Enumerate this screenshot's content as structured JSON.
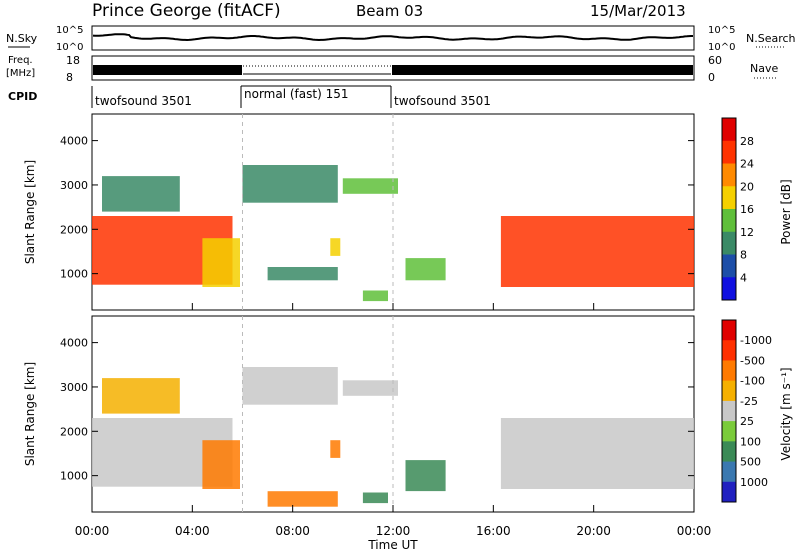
{
  "header": {
    "station": "Prince George (fitACF)",
    "beam": "Beam 03",
    "date": "15/Mar/2013"
  },
  "sky_panel": {
    "left_label": "N.Sky",
    "right_label": "N.Search",
    "y_ticks": [
      "10^5",
      "10^0"
    ],
    "right_ticks": [
      "10^5",
      "10^0"
    ]
  },
  "freq_panel": {
    "left_label_line1": "Freq.",
    "left_label_line2": "[MHz]",
    "left_ticks": [
      "18",
      "8"
    ],
    "right_label": "Nave",
    "right_ticks": [
      "60",
      "0"
    ]
  },
  "cpid": {
    "label": "CPID",
    "segments": [
      {
        "name": "twofsound 3501",
        "start_ut": 0,
        "end_ut": 6
      },
      {
        "name": "normal (fast) 151",
        "start_ut": 6,
        "end_ut": 12
      },
      {
        "name": "twofsound 3501",
        "start_ut": 12,
        "end_ut": 24
      }
    ]
  },
  "power_panel": {
    "ylabel": "Slant Range [km]",
    "y_ticks": [
      "1000",
      "2000",
      "3000",
      "4000"
    ],
    "colorbar_label": "Power [dB]",
    "colorbar_ticks": [
      "4",
      "8",
      "12",
      "16",
      "20",
      "24",
      "28"
    ],
    "colors": [
      "#1010e0",
      "#1c4ea8",
      "#3a8a66",
      "#5fbf3a",
      "#f5d000",
      "#ff8a00",
      "#ff3300",
      "#e00000"
    ]
  },
  "velocity_panel": {
    "ylabel": "Slant Range [km]",
    "y_ticks": [
      "1000",
      "2000",
      "3000",
      "4000"
    ],
    "colorbar_label": "Velocity [m s⁻¹]",
    "colorbar_ticks": [
      "1000",
      "500",
      "100",
      "25",
      "-25",
      "-100",
      "-500",
      "-1000"
    ],
    "colors": [
      "#2020c0",
      "#3a78b0",
      "#3a8a56",
      "#7acb3a",
      "#c8c8c8",
      "#f5b000",
      "#ff7a00",
      "#ff3000",
      "#e00000"
    ]
  },
  "xaxis": {
    "label": "Time UT",
    "ticks": [
      "00:00",
      "04:00",
      "08:00",
      "12:00",
      "16:00",
      "20:00",
      "00:00"
    ]
  },
  "chart_data": {
    "type": "heatmap",
    "title": "Prince George (fitACF)  Beam 03  15/Mar/2013",
    "xlabel": "Time UT",
    "ylabel": "Slant Range [km]",
    "xlim_hours": [
      0,
      24
    ],
    "ylim_km": [
      180,
      4600
    ],
    "vertical_markers_ut": [
      6,
      12
    ],
    "power_regions": [
      {
        "t0": 0.0,
        "t1": 5.6,
        "r0": 750,
        "r1": 2300,
        "db": 26
      },
      {
        "t0": 0.4,
        "t1": 3.5,
        "r0": 2400,
        "r1": 3200,
        "db": 10
      },
      {
        "t0": 4.4,
        "t1": 5.9,
        "r0": 700,
        "r1": 1800,
        "db": 18
      },
      {
        "t0": 6.0,
        "t1": 9.8,
        "r0": 2600,
        "r1": 3450,
        "db": 10
      },
      {
        "t0": 7.0,
        "t1": 9.8,
        "r0": 850,
        "r1": 1150,
        "db": 8
      },
      {
        "t0": 9.5,
        "t1": 9.9,
        "r0": 1400,
        "r1": 1800,
        "db": 16
      },
      {
        "t0": 10.0,
        "t1": 12.2,
        "r0": 2800,
        "r1": 3150,
        "db": 12
      },
      {
        "t0": 10.8,
        "t1": 11.8,
        "r0": 380,
        "r1": 620,
        "db": 14
      },
      {
        "t0": 12.5,
        "t1": 14.1,
        "r0": 850,
        "r1": 1350,
        "db": 14
      },
      {
        "t0": 16.3,
        "t1": 24.0,
        "r0": 700,
        "r1": 2300,
        "db": 24
      }
    ],
    "velocity_regions": [
      {
        "t0": 0.0,
        "t1": 5.6,
        "r0": 750,
        "r1": 2300,
        "v": 0
      },
      {
        "t0": 0.4,
        "t1": 3.5,
        "r0": 2400,
        "r1": 3200,
        "v": -100
      },
      {
        "t0": 4.4,
        "t1": 5.9,
        "r0": 700,
        "r1": 1800,
        "v": -500
      },
      {
        "t0": 6.0,
        "t1": 9.8,
        "r0": 2600,
        "r1": 3450,
        "v": 0
      },
      {
        "t0": 7.0,
        "t1": 9.8,
        "r0": 300,
        "r1": 650,
        "v": -500
      },
      {
        "t0": 9.5,
        "t1": 9.9,
        "r0": 1400,
        "r1": 1800,
        "v": -500
      },
      {
        "t0": 10.0,
        "t1": 12.2,
        "r0": 2800,
        "r1": 3150,
        "v": 0
      },
      {
        "t0": 10.8,
        "t1": 11.8,
        "r0": 380,
        "r1": 620,
        "v": 100
      },
      {
        "t0": 12.5,
        "t1": 14.1,
        "r0": 650,
        "r1": 1350,
        "v": 100
      },
      {
        "t0": 16.3,
        "t1": 24.0,
        "r0": 700,
        "r1": 2300,
        "v": 0
      }
    ]
  }
}
